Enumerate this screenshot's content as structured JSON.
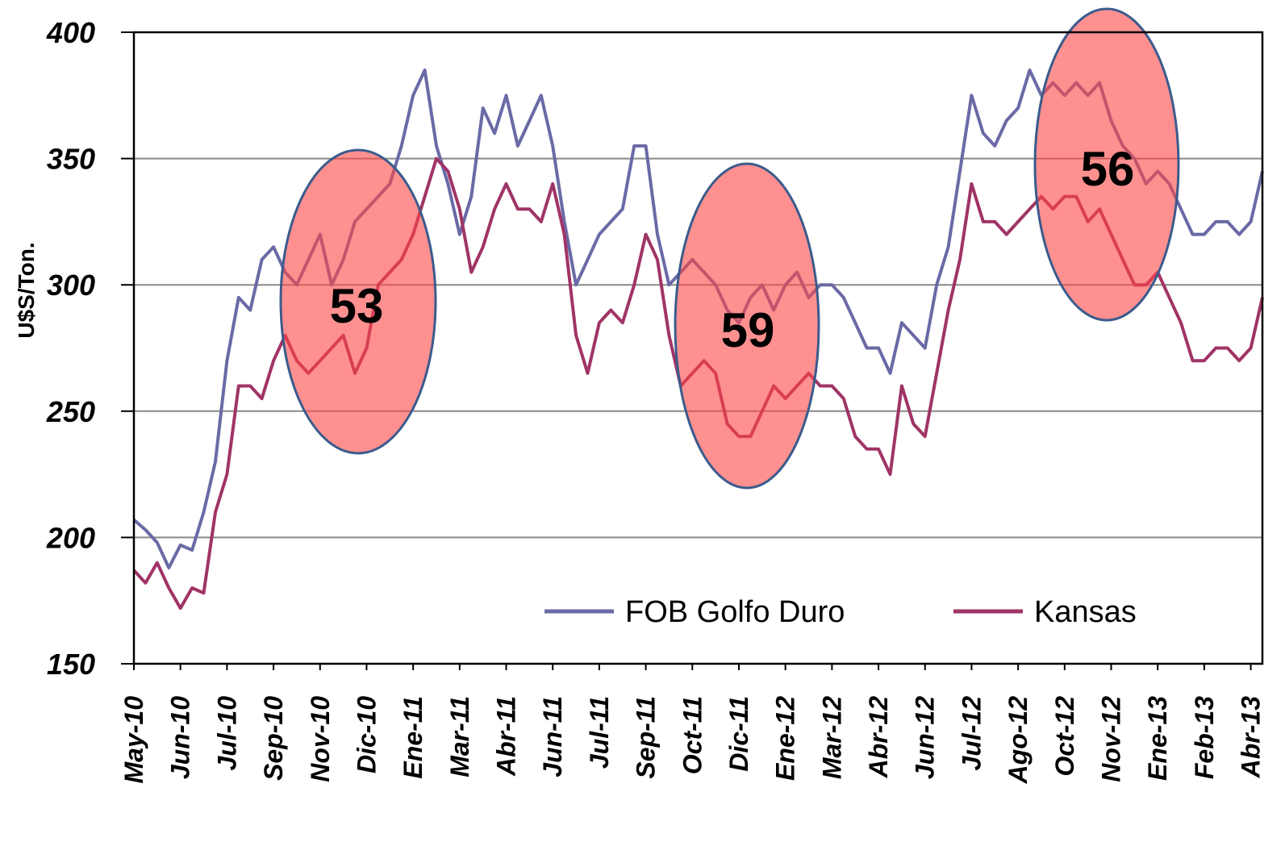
{
  "chart_data": {
    "type": "line",
    "y_label": "U$S/Ton.",
    "categories": [
      "May-10",
      null,
      null,
      null,
      "Jun-10",
      null,
      null,
      null,
      "Jul-10",
      null,
      null,
      null,
      "Sep-10",
      null,
      null,
      null,
      "Nov-10",
      null,
      null,
      null,
      "Dic-10",
      null,
      null,
      null,
      "Ene-11",
      null,
      null,
      null,
      "Mar-11",
      null,
      null,
      null,
      "Abr-11",
      null,
      null,
      null,
      "Jun-11",
      null,
      null,
      null,
      "Jul-11",
      null,
      null,
      null,
      "Sep-11",
      null,
      null,
      null,
      "Oct-11",
      null,
      null,
      null,
      "Dic-11",
      null,
      null,
      null,
      "Ene-12",
      null,
      null,
      null,
      "Mar-12",
      null,
      null,
      null,
      "Abr-12",
      null,
      null,
      null,
      "Jun-12",
      null,
      null,
      null,
      "Jul-12",
      null,
      null,
      null,
      "Ago-12",
      null,
      null,
      null,
      "Oct-12",
      null,
      null,
      null,
      "Nov-12",
      null,
      null,
      null,
      "Ene-13",
      null,
      null,
      null,
      "Feb-13",
      null,
      null,
      null,
      "Abr-13",
      null
    ],
    "series": [
      {
        "name": "FOB Golfo Duro",
        "color": "#6a6aa6",
        "values": [
          207,
          203,
          198,
          188,
          197,
          195,
          210,
          230,
          270,
          295,
          290,
          310,
          315,
          305,
          300,
          310,
          320,
          300,
          310,
          325,
          330,
          335,
          340,
          355,
          375,
          385,
          355,
          340,
          320,
          335,
          370,
          360,
          375,
          355,
          365,
          375,
          355,
          325,
          300,
          310,
          320,
          325,
          330,
          355,
          355,
          320,
          300,
          305,
          310,
          305,
          300,
          290,
          285,
          295,
          300,
          290,
          300,
          305,
          295,
          300,
          300,
          295,
          285,
          275,
          275,
          265,
          285,
          280,
          275,
          300,
          315,
          345,
          375,
          360,
          355,
          365,
          370,
          385,
          375,
          380,
          375,
          380,
          375,
          380,
          365,
          355,
          350,
          340,
          345,
          340,
          330,
          320,
          320,
          325,
          325,
          320,
          325,
          345
        ]
      },
      {
        "name": "Kansas",
        "color": "#a03466",
        "values": [
          187,
          182,
          190,
          180,
          172,
          180,
          178,
          210,
          225,
          260,
          260,
          255,
          270,
          280,
          270,
          265,
          270,
          275,
          280,
          265,
          275,
          300,
          305,
          310,
          320,
          335,
          350,
          345,
          330,
          305,
          315,
          330,
          340,
          330,
          330,
          325,
          340,
          320,
          280,
          265,
          285,
          290,
          285,
          300,
          320,
          310,
          280,
          260,
          265,
          270,
          265,
          245,
          240,
          240,
          250,
          260,
          255,
          260,
          265,
          260,
          260,
          255,
          240,
          235,
          235,
          225,
          260,
          245,
          240,
          265,
          290,
          310,
          340,
          325,
          325,
          320,
          325,
          330,
          335,
          330,
          335,
          335,
          325,
          330,
          320,
          310,
          300,
          300,
          305,
          295,
          285,
          270,
          270,
          275,
          275,
          270,
          275,
          295
        ]
      }
    ],
    "annotations": [
      "53",
      "59",
      "56"
    ],
    "ylim": [
      150,
      400
    ],
    "yticks": [
      150,
      200,
      250,
      300,
      350,
      400
    ],
    "grid": true,
    "legend": "lower right"
  }
}
